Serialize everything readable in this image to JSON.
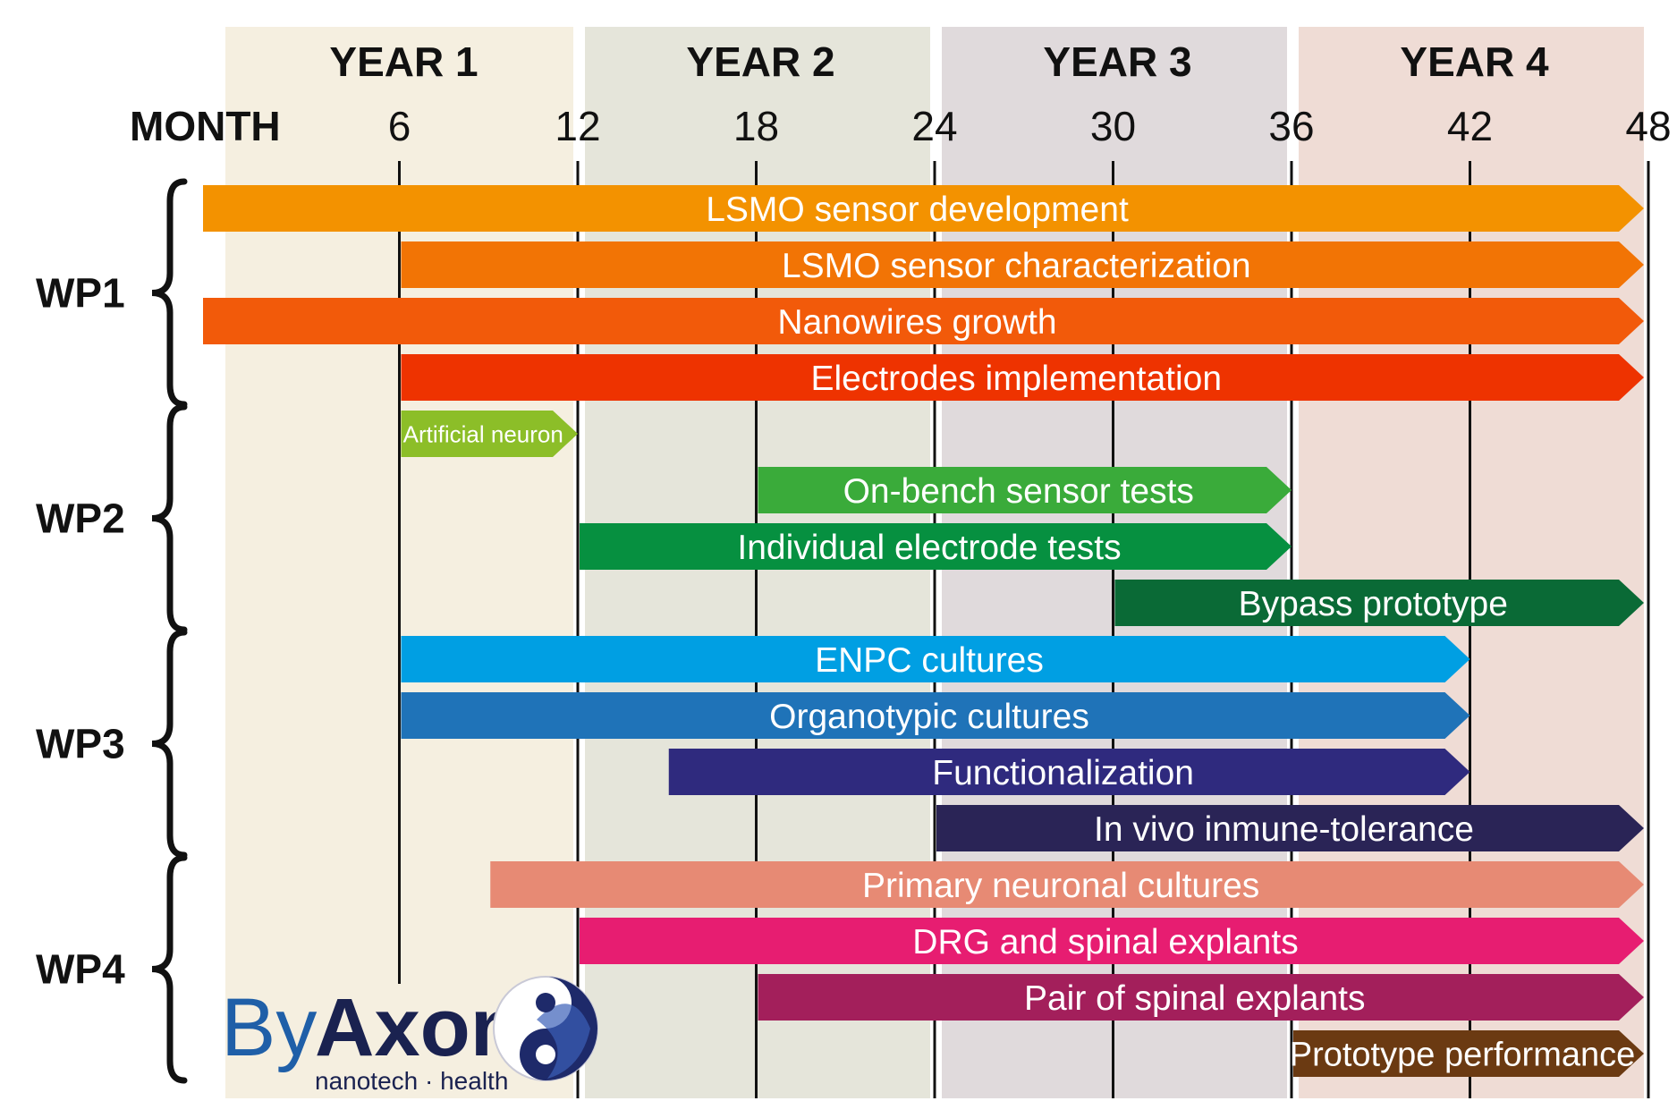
{
  "chart_data": {
    "type": "gantt",
    "x_axis_label": "MONTH",
    "xlim": [
      0,
      48
    ],
    "ticks": [
      6,
      12,
      18,
      24,
      30,
      36,
      42,
      48
    ],
    "years": [
      {
        "label": "YEAR 1",
        "start": 0,
        "end": 12,
        "color": "#f5efe0"
      },
      {
        "label": "YEAR 2",
        "start": 12,
        "end": 24,
        "color": "#e5e5da"
      },
      {
        "label": "YEAR 3",
        "start": 24,
        "end": 36,
        "color": "#e0dadc"
      },
      {
        "label": "YEAR 4",
        "start": 36,
        "end": 48,
        "color": "#efdcd5"
      }
    ],
    "groups": [
      {
        "label": "WP1",
        "first_row": 0,
        "last_row": 3
      },
      {
        "label": "WP2",
        "first_row": 4,
        "last_row": 7
      },
      {
        "label": "WP3",
        "first_row": 8,
        "last_row": 11
      },
      {
        "label": "WP4",
        "first_row": 12,
        "last_row": 15
      }
    ],
    "tasks": [
      {
        "name": "LSMO sensor development",
        "start": 0,
        "end": 48,
        "color": "#f39200",
        "size": "large"
      },
      {
        "name": "LSMO sensor characterization",
        "start": 6,
        "end": 48,
        "color": "#f27405",
        "size": "large"
      },
      {
        "name": "Nanowires growth",
        "start": 0,
        "end": 48,
        "color": "#f25a0a",
        "size": "large"
      },
      {
        "name": "Electrodes implementation",
        "start": 6,
        "end": 48,
        "color": "#ee3300",
        "size": "large"
      },
      {
        "name": "Artificial neuron",
        "start": 6,
        "end": 12,
        "color": "#8cbe28",
        "size": "small"
      },
      {
        "name": "On-bench sensor tests",
        "start": 18,
        "end": 36,
        "color": "#3aab3a",
        "size": "large"
      },
      {
        "name": "Individual electrode tests",
        "start": 12,
        "end": 36,
        "color": "#069040",
        "size": "large"
      },
      {
        "name": "Bypass prototype",
        "start": 30,
        "end": 48,
        "color": "#0a6a36",
        "size": "large"
      },
      {
        "name": "ENPC cultures",
        "start": 6,
        "end": 42,
        "color": "#009fe3",
        "size": "large"
      },
      {
        "name": "Organotypic cultures",
        "start": 6,
        "end": 42,
        "color": "#1f73b8",
        "size": "large"
      },
      {
        "name": "Functionalization",
        "start": 15,
        "end": 42,
        "color": "#2f2a7e",
        "size": "large"
      },
      {
        "name": "In vivo inmune-tolerance",
        "start": 24,
        "end": 48,
        "color": "#2a2456",
        "size": "large"
      },
      {
        "name": "Primary neuronal cultures",
        "start": 9,
        "end": 48,
        "color": "#e78a74",
        "size": "large"
      },
      {
        "name": "DRG and spinal explants",
        "start": 12,
        "end": 48,
        "color": "#e71d71",
        "size": "large"
      },
      {
        "name": "Pair of spinal explants",
        "start": 18,
        "end": 48,
        "color": "#a31f5b",
        "size": "large"
      },
      {
        "name": "Prototype performance",
        "start": 36,
        "end": 48,
        "color": "#6b3a12",
        "size": "medium"
      }
    ]
  },
  "logo": {
    "by": "By",
    "axon": "Axon",
    "tagline": "nanotech · health"
  }
}
